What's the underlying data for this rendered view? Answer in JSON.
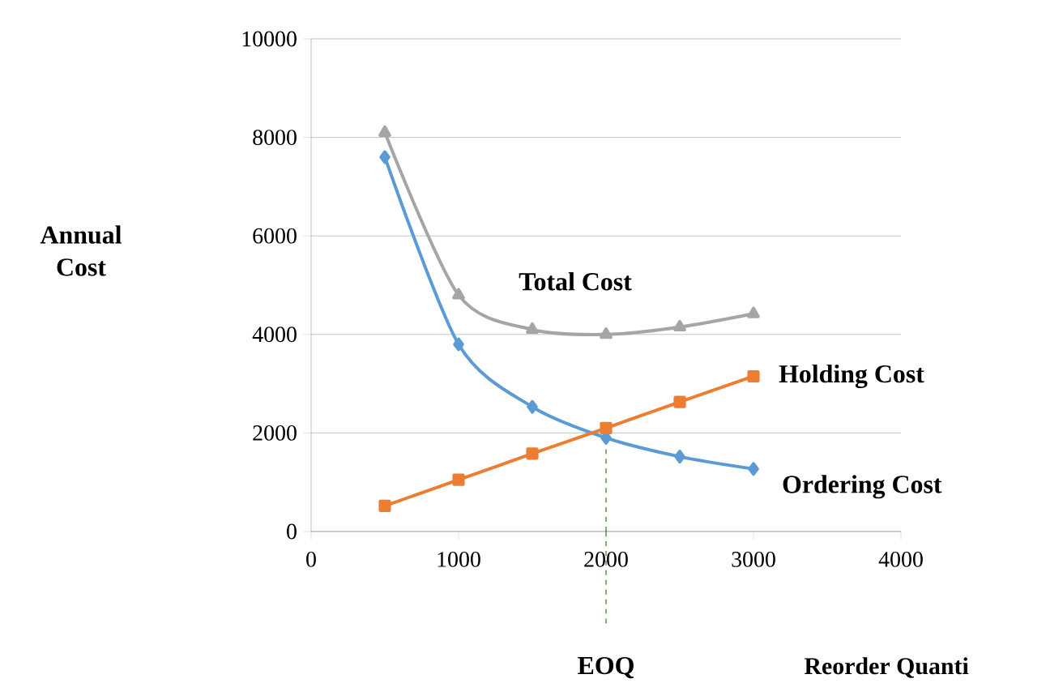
{
  "chart_data": {
    "type": "line",
    "xlabel": "Reorder Quanti",
    "ylabel": "Annual Cost",
    "x": [
      500,
      1000,
      1500,
      2000,
      2500,
      3000
    ],
    "series": [
      {
        "name": "Ordering Cost",
        "color": "#5b9bd5",
        "marker": "diamond",
        "values": [
          7600,
          3800,
          2530,
          1900,
          1520,
          1270
        ]
      },
      {
        "name": "Holding Cost",
        "color": "#ed7d31",
        "marker": "square",
        "values": [
          520,
          1050,
          1580,
          2100,
          2630,
          3150
        ]
      },
      {
        "name": "Total Cost",
        "color": "#a5a5a5",
        "marker": "triangle",
        "values": [
          8100,
          4800,
          4100,
          4000,
          4150,
          4420
        ]
      }
    ],
    "xlim": [
      0,
      4000
    ],
    "xticks": [
      0,
      1000,
      2000,
      3000,
      4000
    ],
    "ylim": [
      0,
      10000
    ],
    "yticks": [
      0,
      2000,
      4000,
      6000,
      8000,
      10000
    ],
    "grid": "y",
    "legend": false,
    "ref_lines": [
      {
        "axis": "x",
        "value": 2000,
        "label": "EOQ",
        "color": "#38761d",
        "line_style": "dashed"
      }
    ]
  }
}
